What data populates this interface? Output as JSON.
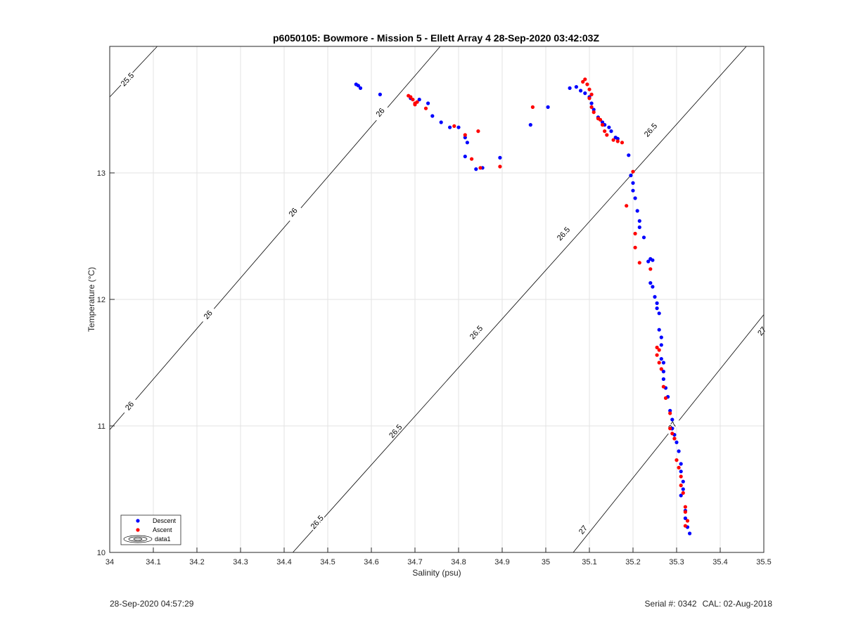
{
  "chart_data": {
    "type": "scatter",
    "title": "p6050105: Bowmore - Mission 5 - Ellett Array 4 28-Sep-2020 03:42:03Z",
    "xlabel": "Salinity (psu)",
    "ylabel": "Temperature (°C)",
    "xlim": [
      34,
      35.5
    ],
    "ylim": [
      10,
      14
    ],
    "xticks": [
      34,
      34.1,
      34.2,
      34.3,
      34.4,
      34.5,
      34.6,
      34.7,
      34.8,
      34.9,
      35,
      35.1,
      35.2,
      35.3,
      35.4,
      35.5
    ],
    "yticks": [
      10,
      11,
      12,
      13
    ],
    "grid": true,
    "legend_position": "bottom-left",
    "legend": [
      "Descent",
      "Ascent",
      "data1"
    ],
    "contours": [
      {
        "label": "25.5",
        "points": [
          [
            34.0,
            13.6
          ],
          [
            34.109,
            14.0
          ]
        ],
        "label_positions": [
          [
            34.04,
            13.74
          ]
        ]
      },
      {
        "label": "26",
        "points": [
          [
            34.0,
            10.97
          ],
          [
            34.758,
            14.0
          ]
        ],
        "label_positions": [
          [
            34.045,
            11.16
          ],
          [
            34.225,
            11.88
          ],
          [
            34.42,
            12.69
          ],
          [
            34.62,
            13.48
          ]
        ]
      },
      {
        "label": "26.5",
        "points": [
          [
            34.42,
            10.0
          ],
          [
            35.46,
            14.0
          ]
        ],
        "label_positions": [
          [
            34.475,
            10.24
          ],
          [
            34.655,
            10.96
          ],
          [
            34.84,
            11.74
          ],
          [
            35.04,
            12.52
          ],
          [
            35.24,
            13.34
          ]
        ]
      },
      {
        "label": "27",
        "points": [
          [
            35.063,
            10.0
          ],
          [
            35.5,
            11.88
          ]
        ],
        "label_positions": [
          [
            35.085,
            10.18
          ],
          [
            35.29,
            11.0
          ],
          [
            35.495,
            11.75
          ]
        ]
      }
    ],
    "series": [
      {
        "name": "Descent",
        "color": "#0000ff",
        "points": [
          [
            34.565,
            13.7
          ],
          [
            34.57,
            13.69
          ],
          [
            34.575,
            13.67
          ],
          [
            34.62,
            13.62
          ],
          [
            34.69,
            13.59
          ],
          [
            34.71,
            13.58
          ],
          [
            34.73,
            13.55
          ],
          [
            34.74,
            13.45
          ],
          [
            34.76,
            13.4
          ],
          [
            34.78,
            13.36
          ],
          [
            34.8,
            13.36
          ],
          [
            34.815,
            13.28
          ],
          [
            34.82,
            13.24
          ],
          [
            34.815,
            13.13
          ],
          [
            34.84,
            13.03
          ],
          [
            34.855,
            13.04
          ],
          [
            34.895,
            13.12
          ],
          [
            34.965,
            13.38
          ],
          [
            35.005,
            13.52
          ],
          [
            35.055,
            13.67
          ],
          [
            35.07,
            13.68
          ],
          [
            35.08,
            13.65
          ],
          [
            35.09,
            13.63
          ],
          [
            35.1,
            13.6
          ],
          [
            35.105,
            13.55
          ],
          [
            35.11,
            13.5
          ],
          [
            35.12,
            13.44
          ],
          [
            35.13,
            13.4
          ],
          [
            35.135,
            13.38
          ],
          [
            35.145,
            13.36
          ],
          [
            35.15,
            13.33
          ],
          [
            35.16,
            13.28
          ],
          [
            35.165,
            13.27
          ],
          [
            35.19,
            13.14
          ],
          [
            35.195,
            12.98
          ],
          [
            35.2,
            12.92
          ],
          [
            35.2,
            12.86
          ],
          [
            35.205,
            12.8
          ],
          [
            35.21,
            12.7
          ],
          [
            35.215,
            12.62
          ],
          [
            35.215,
            12.57
          ],
          [
            35.225,
            12.49
          ],
          [
            35.235,
            12.3
          ],
          [
            35.24,
            12.32
          ],
          [
            35.245,
            12.31
          ],
          [
            35.24,
            12.13
          ],
          [
            35.245,
            12.1
          ],
          [
            35.25,
            12.02
          ],
          [
            35.255,
            11.97
          ],
          [
            35.255,
            11.93
          ],
          [
            35.26,
            11.89
          ],
          [
            35.26,
            11.76
          ],
          [
            35.265,
            11.7
          ],
          [
            35.265,
            11.64
          ],
          [
            35.265,
            11.53
          ],
          [
            35.27,
            11.5
          ],
          [
            35.27,
            11.43
          ],
          [
            35.27,
            11.37
          ],
          [
            35.275,
            11.3
          ],
          [
            35.28,
            11.23
          ],
          [
            35.285,
            11.12
          ],
          [
            35.29,
            11.05
          ],
          [
            35.29,
            10.98
          ],
          [
            35.295,
            10.93
          ],
          [
            35.3,
            10.87
          ],
          [
            35.305,
            10.8
          ],
          [
            35.31,
            10.7
          ],
          [
            35.31,
            10.64
          ],
          [
            35.315,
            10.56
          ],
          [
            35.315,
            10.5
          ],
          [
            35.31,
            10.45
          ],
          [
            35.32,
            10.33
          ],
          [
            35.32,
            10.27
          ],
          [
            35.325,
            10.2
          ],
          [
            35.33,
            10.15
          ]
        ]
      },
      {
        "name": "Ascent",
        "color": "#ff0000",
        "points": [
          [
            34.685,
            13.61
          ],
          [
            34.69,
            13.6
          ],
          [
            34.695,
            13.58
          ],
          [
            34.7,
            13.55
          ],
          [
            34.705,
            13.56
          ],
          [
            34.7,
            13.54
          ],
          [
            34.725,
            13.51
          ],
          [
            34.79,
            13.37
          ],
          [
            34.815,
            13.3
          ],
          [
            34.845,
            13.33
          ],
          [
            34.83,
            13.11
          ],
          [
            34.85,
            13.04
          ],
          [
            34.895,
            13.05
          ],
          [
            34.97,
            13.52
          ],
          [
            35.085,
            13.72
          ],
          [
            35.09,
            13.74
          ],
          [
            35.095,
            13.7
          ],
          [
            35.1,
            13.66
          ],
          [
            35.105,
            13.62
          ],
          [
            35.1,
            13.59
          ],
          [
            35.105,
            13.52
          ],
          [
            35.11,
            13.48
          ],
          [
            35.12,
            13.43
          ],
          [
            35.125,
            13.42
          ],
          [
            35.13,
            13.38
          ],
          [
            35.135,
            13.33
          ],
          [
            35.14,
            13.3
          ],
          [
            35.155,
            13.26
          ],
          [
            35.165,
            13.25
          ],
          [
            35.175,
            13.24
          ],
          [
            35.2,
            13.01
          ],
          [
            35.185,
            12.74
          ],
          [
            35.205,
            12.52
          ],
          [
            35.205,
            12.41
          ],
          [
            35.215,
            12.29
          ],
          [
            35.24,
            12.24
          ],
          [
            35.255,
            11.62
          ],
          [
            35.26,
            11.6
          ],
          [
            35.255,
            11.56
          ],
          [
            35.26,
            11.5
          ],
          [
            35.265,
            11.45
          ],
          [
            35.27,
            11.31
          ],
          [
            35.275,
            11.22
          ],
          [
            35.285,
            11.1
          ],
          [
            35.285,
            10.98
          ],
          [
            35.29,
            10.94
          ],
          [
            35.295,
            10.9
          ],
          [
            35.3,
            10.73
          ],
          [
            35.305,
            10.67
          ],
          [
            35.31,
            10.6
          ],
          [
            35.31,
            10.53
          ],
          [
            35.315,
            10.47
          ],
          [
            35.32,
            10.36
          ],
          [
            35.32,
            10.32
          ],
          [
            35.325,
            10.25
          ],
          [
            35.32,
            10.21
          ]
        ]
      }
    ]
  },
  "footer": {
    "timestamp": "28-Sep-2020 04:57:29",
    "serial": "Serial #: 0342",
    "cal": "CAL: 02-Aug-2018"
  }
}
